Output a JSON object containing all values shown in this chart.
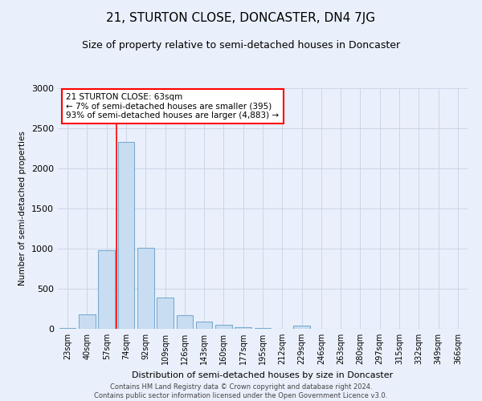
{
  "title": "21, STURTON CLOSE, DONCASTER, DN4 7JG",
  "subtitle": "Size of property relative to semi-detached houses in Doncaster",
  "xlabel": "Distribution of semi-detached houses by size in Doncaster",
  "ylabel": "Number of semi-detached properties",
  "categories": [
    "23sqm",
    "40sqm",
    "57sqm",
    "74sqm",
    "92sqm",
    "109sqm",
    "126sqm",
    "143sqm",
    "160sqm",
    "177sqm",
    "195sqm",
    "212sqm",
    "229sqm",
    "246sqm",
    "263sqm",
    "280sqm",
    "297sqm",
    "315sqm",
    "332sqm",
    "349sqm",
    "366sqm"
  ],
  "values": [
    10,
    180,
    980,
    2330,
    1010,
    390,
    170,
    90,
    55,
    25,
    10,
    5,
    40,
    5,
    5,
    5,
    5,
    5,
    5,
    5,
    5
  ],
  "bar_color": "#c9ddf2",
  "bar_edge_color": "#7aabcf",
  "grid_color": "#ccd5e8",
  "background_color": "#eaf0fb",
  "property_line_idx": 2.5,
  "annotation_text": "21 STURTON CLOSE: 63sqm\n← 7% of semi-detached houses are smaller (395)\n93% of semi-detached houses are larger (4,883) →",
  "annotation_box_color": "white",
  "annotation_box_edge_color": "red",
  "footer_text": "Contains HM Land Registry data © Crown copyright and database right 2024.\nContains public sector information licensed under the Open Government Licence v3.0.",
  "ylim": [
    0,
    3000
  ],
  "yticks": [
    0,
    500,
    1000,
    1500,
    2000,
    2500,
    3000
  ],
  "title_fontsize": 11,
  "subtitle_fontsize": 9
}
